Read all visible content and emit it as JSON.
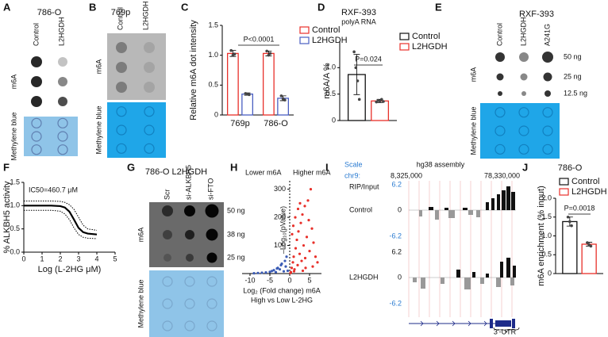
{
  "panel_labels": [
    "A",
    "B",
    "C",
    "D",
    "E",
    "F",
    "G",
    "H",
    "I",
    "J"
  ],
  "blot_a": {
    "title": "786-O",
    "columns": [
      "Control",
      "L2HGDH"
    ],
    "rows": [
      "m6A",
      "Methylene blue"
    ]
  },
  "blot_b": {
    "title": "769p",
    "columns": [
      "Control",
      "L2HGDH"
    ],
    "rows": [
      "m6A",
      "Methylene blue"
    ]
  },
  "blot_e": {
    "title": "RXF-393",
    "columns": [
      "Control",
      "L2HGDH",
      "A241G"
    ],
    "amounts": [
      "50 ng",
      "25 ng",
      "12.5 ng"
    ],
    "rows": [
      "m6A",
      "Methylene blue"
    ]
  },
  "blot_g": {
    "title": "786-O  L2HGDH",
    "columns": [
      "Scr",
      "si-ALKBH5",
      "si-FTO"
    ],
    "amounts": [
      "50 ng",
      "38 ng",
      "25 ng"
    ],
    "rows": [
      "m6A",
      "Methylene blue"
    ]
  },
  "browser": {
    "scale": "Scale",
    "chrom": "chr9:",
    "assembly": "hg38 assembly",
    "positions": [
      "8,325,000",
      "78,330,000"
    ],
    "track_label": "RIP/Input",
    "tracks": [
      {
        "name": "Control",
        "ticks": [
          "6.2",
          "0",
          "-6.2"
        ]
      },
      {
        "name": "L2HGDH",
        "ticks": [
          "6.2",
          "0",
          "-6.2"
        ]
      }
    ],
    "annotation": "3'-UTR"
  },
  "chart_data": [
    {
      "type": "bar",
      "ylabel": "Relative m6A dot intensity",
      "categories": [
        "769p",
        "786-O"
      ],
      "series": [
        {
          "name": "Control",
          "color": "#e8302a",
          "values": [
            1.03,
            1.03
          ],
          "errors": [
            0.05,
            0.04
          ],
          "points": [
            [
              1.08,
              1.0,
              1.02
            ],
            [
              1.07,
              1.0,
              1.03
            ]
          ]
        },
        {
          "name": "L2HGDH",
          "color": "#4a5fc1",
          "values": [
            0.35,
            0.28
          ],
          "errors": [
            0.02,
            0.04
          ],
          "points": [
            [
              0.36,
              0.35,
              0.34
            ],
            [
              0.32,
              0.27,
              0.25
            ]
          ]
        }
      ],
      "ylim": [
        0,
        1.5
      ],
      "yticks": [
        0,
        0.5,
        {
          "value": 1,
          "label": "1.0"
        },
        1.5
      ],
      "annotations": [
        "P<0.0001"
      ],
      "legend": "upper right"
    },
    {
      "type": "bar",
      "title": "RXF-393",
      "subtitle": "polyA RNA",
      "ylabel": "m6A/A %",
      "categories": [
        null
      ],
      "series": [
        {
          "name": "Control",
          "color": "#111111",
          "values": [
            0.87
          ],
          "errors": [
            0.38
          ],
          "points": [
            [
              1.3,
              1.0,
              0.75,
              0.4
            ]
          ]
        },
        {
          "name": "L2HGDH",
          "color": "#e8302a",
          "values": [
            0.37
          ],
          "errors": [
            0.03
          ],
          "points": [
            [
              0.35,
              0.38,
              0.37,
              0.4,
              0.36
            ]
          ]
        }
      ],
      "ylim": [
        0,
        1.5
      ],
      "yticks": [
        0,
        0.5,
        {
          "value": 1,
          "label": "1.0"
        }
      ],
      "annotations": [
        "P=0.024"
      ],
      "legend": "upper right"
    },
    {
      "type": "line",
      "ylabel": "% ALKBH5 activity",
      "xlabel": "Log (L-2HG μM)",
      "x": [
        0,
        0.5,
        1,
        1.5,
        2,
        2.25,
        2.5,
        2.75,
        3,
        3.25,
        3.5,
        4
      ],
      "series": [
        {
          "color": "#000000",
          "line_style": "solid",
          "values": [
            1,
            1,
            1,
            1,
            0.99,
            0.96,
            0.87,
            0.7,
            0.52,
            0.43,
            0.4,
            0.38
          ]
        },
        {
          "color": "#000000",
          "line_style": "dotted",
          "values": [
            1.1,
            1.1,
            1.1,
            1.1,
            1.09,
            1.07,
            1.02,
            0.92,
            0.75,
            0.58,
            0.5,
            0.47
          ]
        },
        {
          "color": "#000000",
          "line_style": "dotted",
          "values": [
            0.9,
            0.9,
            0.9,
            0.9,
            0.88,
            0.82,
            0.7,
            0.52,
            0.38,
            0.32,
            0.3,
            0.29
          ]
        }
      ],
      "xlim": [
        0,
        5
      ],
      "xticks": [
        0,
        1,
        2,
        3,
        4,
        5
      ],
      "ylim": [
        0,
        1.5
      ],
      "yticks": [
        {
          "value": 0,
          "label": "0.0"
        },
        0.5,
        {
          "value": 1,
          "label": "1.0"
        },
        1.5
      ],
      "annotations": [
        "IC50=460.7 μM"
      ]
    },
    {
      "type": "scatter",
      "ylabel": "–Log₁₀(pValue)",
      "xlabel": "Log₂ (Fold change) m6A",
      "subtitle": "High vs Low L-2HG",
      "series": [
        {
          "name": "Lower m6A",
          "color": "#3a5bb5",
          "x": [
            -0.5,
            -1,
            -1.5,
            -2,
            -2.5,
            -3,
            -3.5,
            -4,
            -5,
            -6,
            -7,
            -8,
            -9,
            -1.2,
            -2.2,
            -0.8,
            -3.2,
            -4.5
          ],
          "values": [
            10,
            25,
            8,
            35,
            15,
            20,
            5,
            12,
            6,
            4,
            3,
            2,
            1,
            45,
            30,
            60,
            18,
            9
          ]
        },
        {
          "name": "Higher m6A",
          "color": "#e8302a",
          "x": [
            0.3,
            0.5,
            0.8,
            1.0,
            1.2,
            1.5,
            1.8,
            2.0,
            2.2,
            2.5,
            2.8,
            3.0,
            3.2,
            3.5,
            3.8,
            4.0,
            4.3,
            4.6,
            5.0,
            5.3,
            5.6,
            6.0,
            6.5,
            7.0,
            0.6,
            1.4,
            2.6,
            3.3,
            4.8,
            1.1,
            0.2,
            0.9,
            2.1,
            3.9,
            5.8
          ],
          "values": [
            5,
            20,
            40,
            60,
            15,
            90,
            120,
            30,
            150,
            70,
            180,
            45,
            210,
            100,
            240,
            20,
            130,
            260,
            80,
            300,
            160,
            110,
            60,
            40,
            140,
            200,
            250,
            10,
            190,
            8,
            2,
            170,
            230,
            55,
            25
          ]
        }
      ],
      "xlim": [
        -12,
        8
      ],
      "xticks": [
        -10,
        -5,
        0,
        5
      ],
      "ylim": [
        0,
        330
      ],
      "yticks": [
        0,
        100,
        200,
        300
      ]
    },
    {
      "type": "bar",
      "title": "786-O",
      "ylabel": "m6A enrichment (% input)",
      "categories": [
        null
      ],
      "series": [
        {
          "name": "Control",
          "color": "#111111",
          "values": [
            1.38
          ],
          "errors": [
            0.12
          ],
          "points": [
            [
              1.5,
              1.38,
              1.27
            ]
          ]
        },
        {
          "name": "L2HGDH",
          "color": "#e8302a",
          "values": [
            0.78
          ],
          "errors": [
            0.05
          ],
          "points": [
            [
              0.82,
              0.76,
              0.73
            ]
          ]
        }
      ],
      "ylim": [
        0,
        2
      ],
      "yticks": [
        0,
        0.5,
        {
          "value": 1,
          "label": "1.0"
        },
        1.5,
        {
          "value": 2,
          "label": "2.0"
        }
      ],
      "annotations": [
        "P=0.0018"
      ],
      "legend": "upper right"
    }
  ]
}
